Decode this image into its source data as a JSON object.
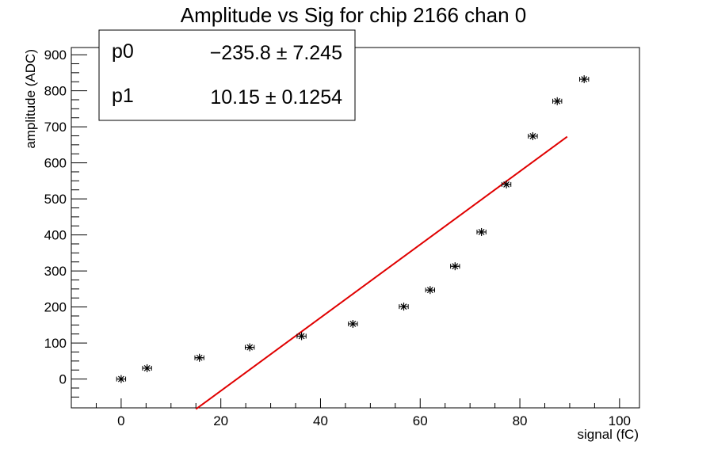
{
  "chart_data": {
    "type": "scatter",
    "title": "Amplitude vs Sig for chip 2166 chan 0",
    "xlabel": "signal (fC)",
    "ylabel": "amplitude (ADC)",
    "xlim": [
      -10,
      104
    ],
    "ylim": [
      -80,
      920
    ],
    "x_ticks": [
      0,
      20,
      40,
      60,
      80,
      100
    ],
    "y_ticks": [
      0,
      100,
      200,
      300,
      400,
      500,
      600,
      700,
      800,
      900
    ],
    "grid": false,
    "marker": "asterisk",
    "points": [
      {
        "x": 0,
        "y": 0
      },
      {
        "x": 5.2,
        "y": 30
      },
      {
        "x": 15.7,
        "y": 59
      },
      {
        "x": 25.8,
        "y": 88
      },
      {
        "x": 36.2,
        "y": 119
      },
      {
        "x": 46.5,
        "y": 153
      },
      {
        "x": 56.7,
        "y": 201
      },
      {
        "x": 62.0,
        "y": 247
      },
      {
        "x": 67.0,
        "y": 313
      },
      {
        "x": 72.3,
        "y": 408
      },
      {
        "x": 77.3,
        "y": 540
      },
      {
        "x": 82.6,
        "y": 674
      },
      {
        "x": 87.5,
        "y": 771
      },
      {
        "x": 92.9,
        "y": 832
      }
    ],
    "x_error": 0.9,
    "fit": {
      "color": "#e00000",
      "p0": -235.8,
      "p1": 10.15,
      "x_range": [
        15.0,
        89.5
      ]
    },
    "stats_box": {
      "placement": "top-left",
      "rows": [
        {
          "name": "p0",
          "value": "−235.8 ± 7.245"
        },
        {
          "name": "p1",
          "value": "10.15 ± 0.1254"
        }
      ]
    }
  }
}
